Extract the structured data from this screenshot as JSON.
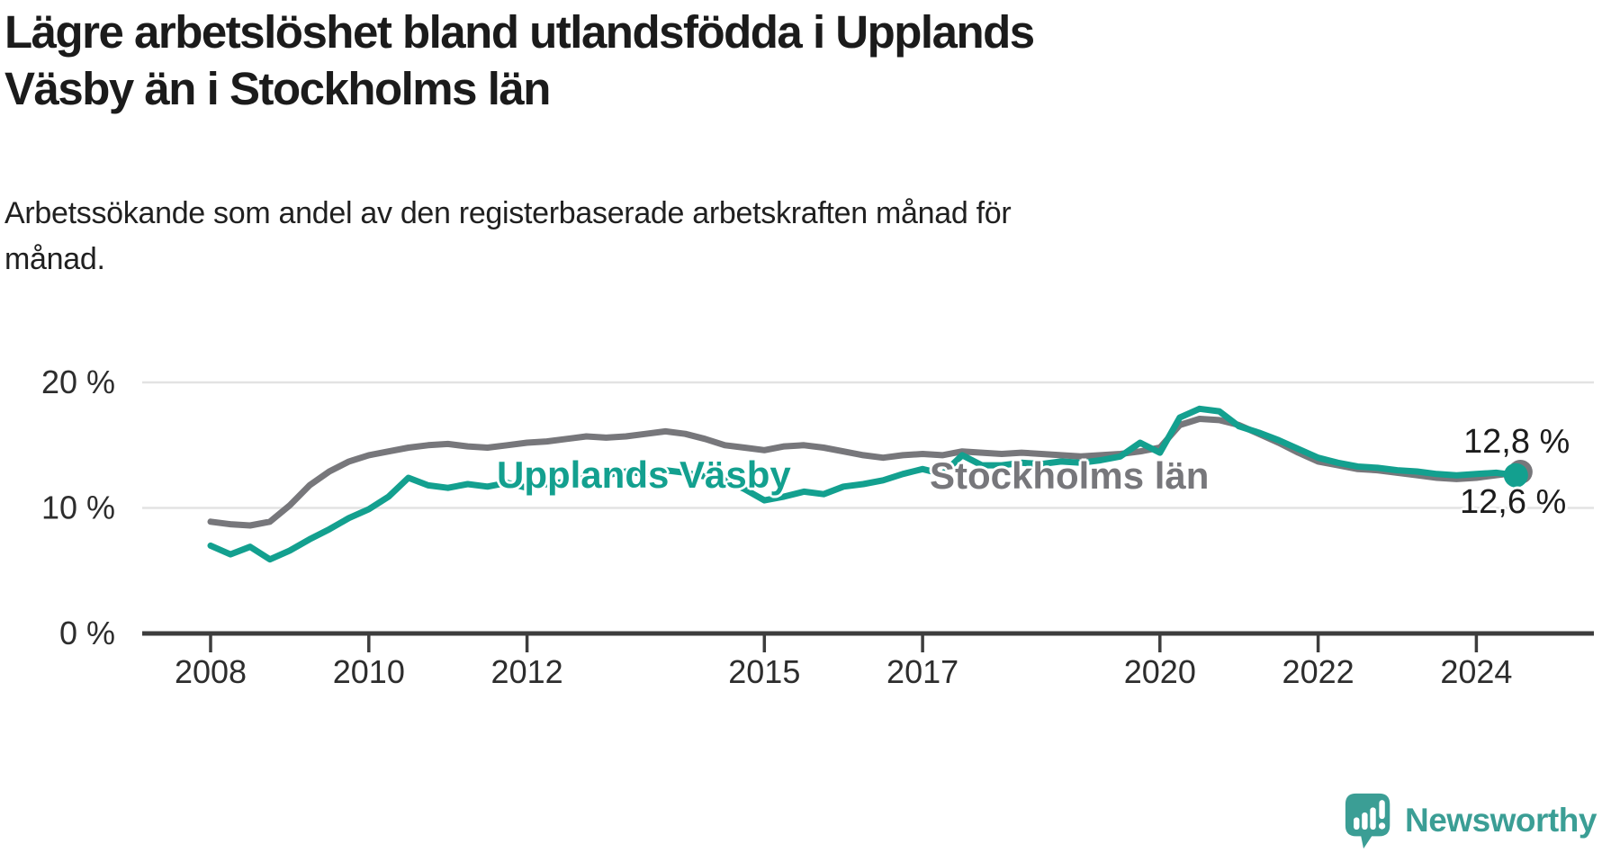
{
  "header": {
    "title_lines": [
      "Lägre arbetslöshet bland utlandsfödda i Upplands",
      "Väsby än i Stockholms län"
    ],
    "subtitle_lines": [
      "Arbetssökande som andel av den registerbaserade arbetskraften månad för",
      "månad."
    ]
  },
  "footer": {
    "brand_name": "Newsworthy",
    "brand_color": "#3b9e95"
  },
  "chart_data": {
    "type": "line",
    "title": "Lägre arbetslöshet bland utlandsfödda i Upplands Väsby än i Stockholms län",
    "subtitle": "Arbetssökande som andel av den registerbaserade arbetskraften månad för månad.",
    "unit": "%",
    "grid": "horizontal-only",
    "legend": "inline-line-labels",
    "xlim": [
      2007.1,
      2025.5
    ],
    "ylim": [
      0,
      21.5
    ],
    "x_ticks": [
      {
        "value": 2008,
        "label": "2008"
      },
      {
        "value": 2010,
        "label": "2010"
      },
      {
        "value": 2012,
        "label": "2012"
      },
      {
        "value": 2015,
        "label": "2015"
      },
      {
        "value": 2017,
        "label": "2017"
      },
      {
        "value": 2020,
        "label": "2020"
      },
      {
        "value": 2022,
        "label": "2022"
      },
      {
        "value": 2024,
        "label": "2024"
      }
    ],
    "y_ticks": [
      {
        "value": 0,
        "label": "0 %"
      },
      {
        "value": 10,
        "label": "10 %"
      },
      {
        "value": 20,
        "label": "20 %"
      }
    ],
    "x": [
      2008.0,
      2008.25,
      2008.5,
      2008.75,
      2009.0,
      2009.25,
      2009.5,
      2009.75,
      2010.0,
      2010.25,
      2010.5,
      2010.75,
      2011.0,
      2011.25,
      2011.5,
      2011.75,
      2012.0,
      2012.25,
      2012.5,
      2012.75,
      2013.0,
      2013.25,
      2013.5,
      2013.75,
      2014.0,
      2014.25,
      2014.5,
      2014.75,
      2015.0,
      2015.25,
      2015.5,
      2015.75,
      2016.0,
      2016.25,
      2016.5,
      2016.75,
      2017.0,
      2017.25,
      2017.5,
      2017.75,
      2018.0,
      2018.25,
      2018.5,
      2018.75,
      2019.0,
      2019.25,
      2019.5,
      2019.75,
      2020.0,
      2020.25,
      2020.5,
      2020.75,
      2021.0,
      2021.25,
      2021.5,
      2021.75,
      2022.0,
      2022.25,
      2022.5,
      2022.75,
      2023.0,
      2023.25,
      2023.5,
      2023.75,
      2024.0,
      2024.25,
      2024.5
    ],
    "series": [
      {
        "name": "Stockholms län",
        "color": "#77777b",
        "end_label": "12,8 %",
        "last_value": 12.8,
        "values": [
          8.9,
          8.7,
          8.6,
          8.9,
          10.2,
          11.8,
          12.9,
          13.7,
          14.2,
          14.5,
          14.8,
          15.0,
          15.1,
          14.9,
          14.8,
          15.0,
          15.2,
          15.3,
          15.5,
          15.7,
          15.6,
          15.7,
          15.9,
          16.1,
          15.9,
          15.5,
          15.0,
          14.8,
          14.6,
          14.9,
          15.0,
          14.8,
          14.5,
          14.2,
          14.0,
          14.2,
          14.3,
          14.2,
          14.5,
          14.4,
          14.3,
          14.4,
          14.3,
          14.2,
          14.1,
          14.2,
          14.3,
          14.5,
          14.8,
          16.6,
          17.1,
          17.0,
          16.6,
          15.9,
          15.2,
          14.4,
          13.7,
          13.4,
          13.1,
          13.0,
          12.8,
          12.6,
          12.4,
          12.3,
          12.4,
          12.6,
          12.8
        ]
      },
      {
        "name": "Upplands Väsby",
        "color": "#13a08f",
        "end_label": "12,6 %",
        "last_value": 12.6,
        "values": [
          7.0,
          6.3,
          6.9,
          5.9,
          6.6,
          7.5,
          8.3,
          9.2,
          9.9,
          10.9,
          12.4,
          11.8,
          11.6,
          11.9,
          11.7,
          12.0,
          11.6,
          11.9,
          12.1,
          12.4,
          12.6,
          12.9,
          12.7,
          13.0,
          12.8,
          12.5,
          12.2,
          11.5,
          10.6,
          10.9,
          11.3,
          11.1,
          11.7,
          11.9,
          12.2,
          12.7,
          13.1,
          12.7,
          14.2,
          13.4,
          13.4,
          13.6,
          13.5,
          13.7,
          13.6,
          13.8,
          14.1,
          15.2,
          14.4,
          17.2,
          17.9,
          17.7,
          16.5,
          16.0,
          15.4,
          14.7,
          14.0,
          13.6,
          13.3,
          13.2,
          13.0,
          12.9,
          12.7,
          12.6,
          12.7,
          12.8,
          12.6
        ]
      }
    ]
  }
}
